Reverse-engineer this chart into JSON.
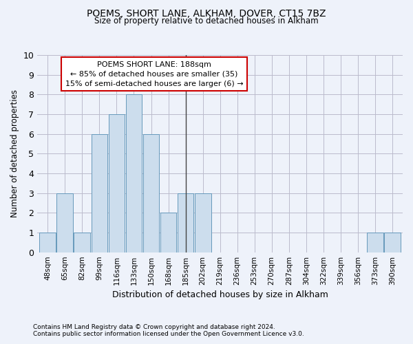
{
  "title": "POEMS, SHORT LANE, ALKHAM, DOVER, CT15 7BZ",
  "subtitle": "Size of property relative to detached houses in Alkham",
  "xlabel": "Distribution of detached houses by size in Alkham",
  "ylabel": "Number of detached properties",
  "footer1": "Contains HM Land Registry data © Crown copyright and database right 2024.",
  "footer2": "Contains public sector information licensed under the Open Government Licence v3.0.",
  "categories": [
    "48sqm",
    "65sqm",
    "82sqm",
    "99sqm",
    "116sqm",
    "133sqm",
    "150sqm",
    "168sqm",
    "185sqm",
    "202sqm",
    "219sqm",
    "236sqm",
    "253sqm",
    "270sqm",
    "287sqm",
    "304sqm",
    "322sqm",
    "339sqm",
    "356sqm",
    "373sqm",
    "390sqm"
  ],
  "values": [
    1,
    3,
    1,
    6,
    7,
    8,
    6,
    2,
    3,
    3,
    0,
    0,
    0,
    0,
    0,
    0,
    0,
    0,
    0,
    1,
    1
  ],
  "bar_color": "#ccdded",
  "bar_edge_color": "#6699bb",
  "grid_color": "#bbbbcc",
  "bg_color": "#eef2fa",
  "vline_index": 8,
  "annotation_text": "POEMS SHORT LANE: 188sqm\n← 85% of detached houses are smaller (35)\n15% of semi-detached houses are larger (6) →",
  "annotation_box_color": "#ffffff",
  "annotation_border_color": "#cc0000",
  "ylim": [
    0,
    10
  ],
  "yticks": [
    0,
    1,
    2,
    3,
    4,
    5,
    6,
    7,
    8,
    9,
    10
  ]
}
